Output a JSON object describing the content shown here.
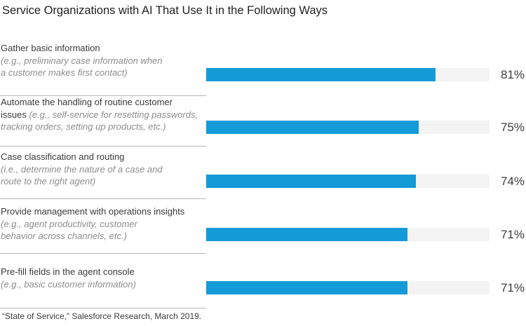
{
  "chart_data": {
    "type": "bar",
    "orientation": "horizontal",
    "title": "Service Organizations with AI That Use It in the Following Ways",
    "categories": [
      "Gather basic information",
      "Automate the handling of routine customer issues",
      "Case classification and routing",
      "Provide management with operations insights",
      "Pre-fill fields in the agent console"
    ],
    "values": [
      81,
      75,
      74,
      71,
      71
    ],
    "value_labels": [
      "81%",
      "75%",
      "74%",
      "71%",
      "71%"
    ],
    "xlim": [
      0,
      100
    ],
    "unit": "%",
    "colors": {
      "bar": "#159ad8",
      "track": "#f3f3f3"
    },
    "rows": [
      {
        "label_lines": [
          {
            "text": "Gather basic information",
            "style": "main"
          },
          {
            "text": "(e.g.,  preliminary case information when",
            "style": "example"
          },
          {
            "text": "a customer makes first contact)",
            "style": "example"
          }
        ]
      },
      {
        "label_lines": [
          {
            "text": "Automate the handling of routine customer",
            "style": "main"
          },
          {
            "text": "issues",
            "style": "main",
            "inline_example": " (e.g., self-service for resetting passwords,"
          },
          {
            "text": "tracking orders, setting up products, etc.)",
            "style": "example"
          }
        ]
      },
      {
        "label_lines": [
          {
            "text": "Case classification and routing",
            "style": "main"
          },
          {
            "text": "(i.e., determine the nature of a case and",
            "style": "example"
          },
          {
            "text": "route to the right agent)",
            "style": "example"
          }
        ]
      },
      {
        "label_lines": [
          {
            "text": "Provide management with operations insights",
            "style": "main"
          },
          {
            "text": "(e.g., agent productivity, customer",
            "style": "example"
          },
          {
            "text": "behavior across channels, etc.)",
            "style": "example"
          }
        ]
      },
      {
        "label_lines": [
          {
            "text": "Pre-fill fields in the agent console",
            "style": "main"
          },
          {
            "text": "(e.g., basic customer information)",
            "style": "example"
          }
        ]
      }
    ],
    "source": "“State of Service,” Salesforce Research, March 2019."
  }
}
